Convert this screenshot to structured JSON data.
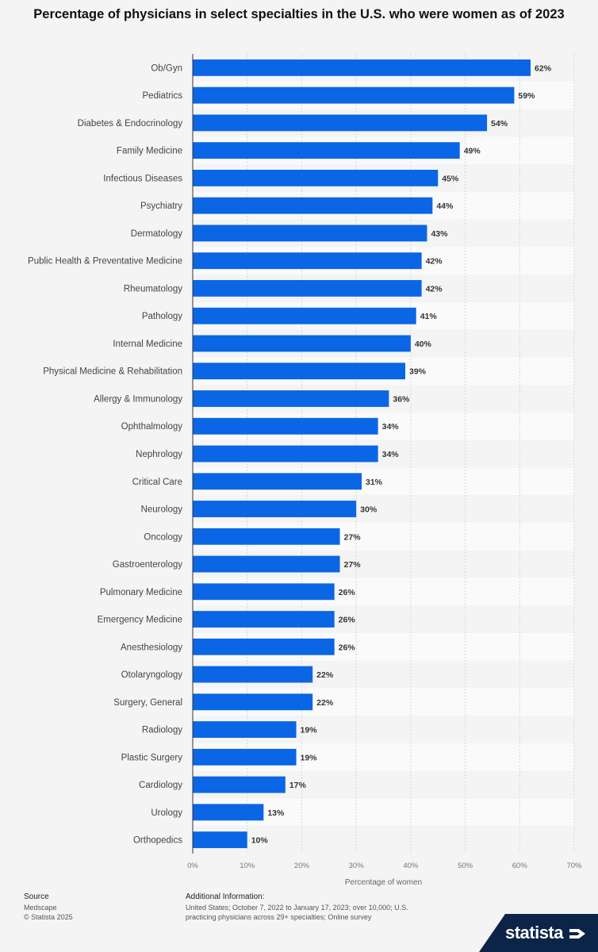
{
  "chart_data": {
    "type": "bar",
    "orientation": "horizontal",
    "title": "Percentage of physicians in select specialties in the U.S. who were women as of 2023",
    "categories": [
      "Ob/Gyn",
      "Pediatrics",
      "Diabetes & Endocrinology",
      "Family Medicine",
      "Infectious Diseases",
      "Psychiatry",
      "Dermatology",
      "Public Health & Preventative Medicine",
      "Rheumatology",
      "Pathology",
      "Internal Medicine",
      "Physical Medicine & Rehabilitation",
      "Allergy & Immunology",
      "Ophthalmology",
      "Nephrology",
      "Critical Care",
      "Neurology",
      "Oncology",
      "Gastroenterology",
      "Pulmonary Medicine",
      "Emergency Medicine",
      "Anesthesiology",
      "Otolaryngology",
      "Surgery, General",
      "Radiology",
      "Plastic Surgery",
      "Cardiology",
      "Urology",
      "Orthopedics"
    ],
    "values": [
      62,
      59,
      54,
      49,
      45,
      44,
      43,
      42,
      42,
      41,
      40,
      39,
      36,
      34,
      34,
      31,
      30,
      27,
      27,
      26,
      26,
      26,
      22,
      22,
      19,
      19,
      17,
      13,
      10
    ],
    "value_labels": [
      "62%",
      "59%",
      "54%",
      "49%",
      "45%",
      "44%",
      "43%",
      "42%",
      "42%",
      "41%",
      "40%",
      "39%",
      "36%",
      "34%",
      "34%",
      "31%",
      "30%",
      "27%",
      "27%",
      "26%",
      "26%",
      "26%",
      "22%",
      "22%",
      "19%",
      "19%",
      "17%",
      "13%",
      "10%"
    ],
    "xlabel": "Percentage of women",
    "ylabel": "",
    "xlim": [
      0,
      70
    ],
    "xticks": [
      0,
      10,
      20,
      30,
      40,
      50,
      60,
      70
    ],
    "xtick_labels": [
      "0%",
      "10%",
      "20%",
      "30%",
      "40%",
      "50%",
      "60%",
      "70%"
    ],
    "grid": true,
    "bar_color": "#0a66e4"
  },
  "footer": {
    "source_heading": "Source",
    "source_name": "Medscape",
    "copyright": "© Statista 2025",
    "info_heading": "Additional Information:",
    "info_text_line1": "United States; October 7, 2022 to January 17, 2023; over 10,000; U.S.",
    "info_text_line2": "practicing physicians across 29+ specialties; Online survey"
  },
  "brand": {
    "name": "statista",
    "background_color": "#0b2447"
  }
}
